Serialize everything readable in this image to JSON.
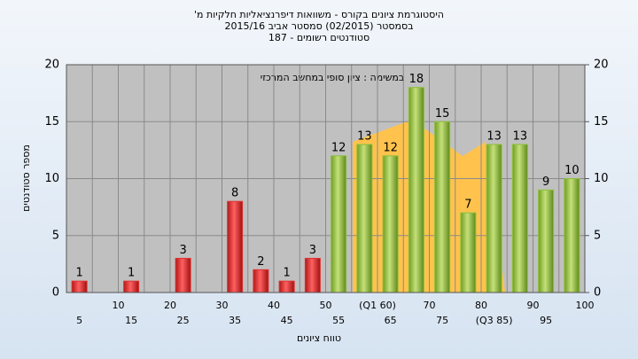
{
  "chart_data": {
    "type": "bar",
    "title": "היסטוגרמת ציונים בקורס - משוואות דיפרנציאליות חלקיות מ'",
    "subtitle": "בסמסטר (02/2015) סמסטר אביב 2015/16",
    "subtitle2": "סטודנטים רשומים - 187",
    "annotation": "במשימה : ציון סופי במחשב המרכזי",
    "x_label": "טווח ציונים",
    "y_label": "מספר סטודנטים",
    "categories": [
      "5",
      "10",
      "15",
      "20",
      "25",
      "30",
      "35",
      "40",
      "45",
      "50",
      "55",
      "(Q1 60)",
      "65",
      "70",
      "75",
      "80",
      "(Q3 85)",
      "90",
      "95",
      "100"
    ],
    "values": [
      1,
      0,
      1,
      0,
      3,
      0,
      8,
      2,
      1,
      3,
      12,
      13,
      12,
      18,
      15,
      7,
      13,
      13,
      9,
      10
    ],
    "colors": [
      "#e03030",
      "#e03030",
      "#e03030",
      "#e03030",
      "#e03030",
      "#e03030",
      "#e03030",
      "#e03030",
      "#e03030",
      "#e03030",
      "#8cbf3a",
      "#8cbf3a",
      "#8cbf3a",
      "#8cbf3a",
      "#8cbf3a",
      "#8cbf3a",
      "#8cbf3a",
      "#8cbf3a",
      "#8cbf3a",
      "#8cbf3a"
    ],
    "ylim": [
      0,
      20
    ],
    "yticks": [
      0,
      5,
      10,
      15,
      20
    ],
    "y2lim": [
      0,
      20
    ],
    "y2ticks": [
      0,
      5,
      10,
      15,
      20
    ],
    "grid": true
  }
}
